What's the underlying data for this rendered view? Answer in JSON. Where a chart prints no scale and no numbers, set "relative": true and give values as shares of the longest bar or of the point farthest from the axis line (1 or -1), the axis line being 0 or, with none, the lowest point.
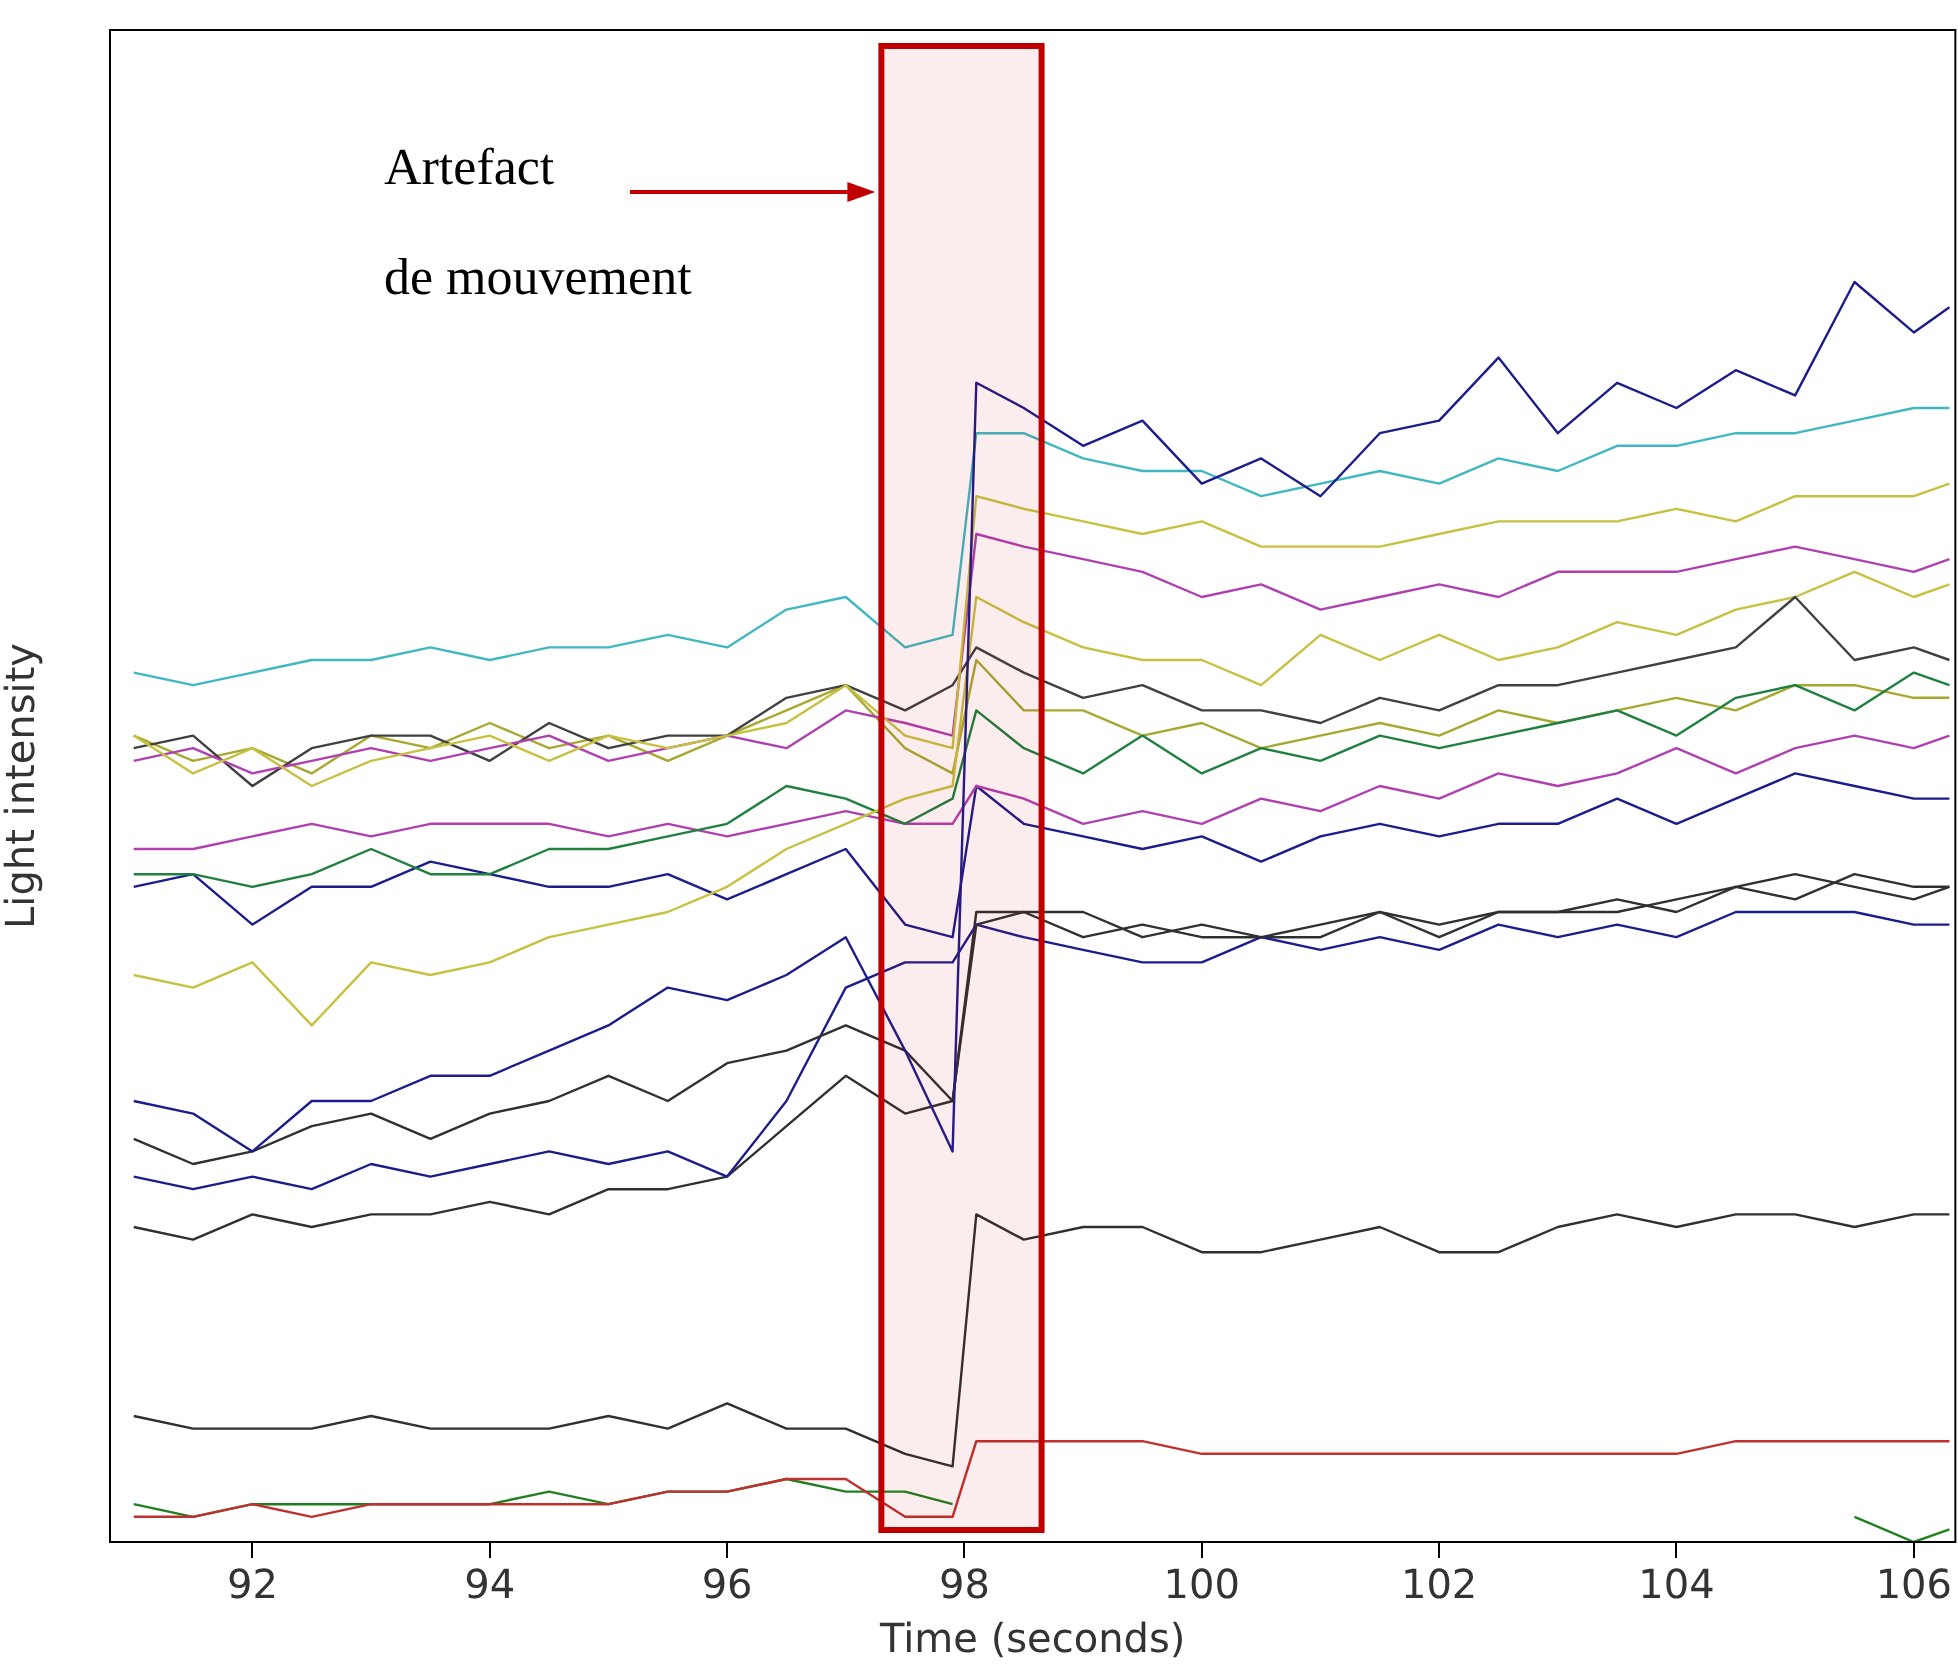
{
  "chart_data": {
    "type": "line",
    "relative": true,
    "xlabel": "Time (seconds)",
    "ylabel": "Light intensity",
    "xlim": [
      90.8,
      106.35
    ],
    "xticks": [
      92,
      94,
      96,
      98,
      100,
      102,
      104,
      106
    ],
    "grid": false,
    "legend": false,
    "marker": "none",
    "line_style": "solid",
    "x": [
      91,
      91.5,
      92,
      92.5,
      93,
      93.5,
      94,
      94.5,
      95,
      95.5,
      96,
      96.5,
      97,
      97.5,
      97.9,
      98.1,
      98.5,
      99,
      99.5,
      100,
      100.5,
      101,
      101.5,
      102,
      102.5,
      103,
      103.5,
      104,
      104.5,
      105,
      105.5,
      106,
      106.3
    ],
    "bands": [
      {
        "axis": "x",
        "from": 97.3,
        "to": 98.65,
        "color": "#c00000"
      }
    ],
    "annotations": [
      "Artefact de mouvement"
    ],
    "series": [
      {
        "color": "#1c1c8c",
        "values": [
          0.35,
          0.34,
          0.31,
          0.35,
          0.35,
          0.37,
          0.37,
          0.39,
          0.41,
          0.44,
          0.43,
          0.45,
          0.48,
          0.39,
          0.31,
          0.92,
          0.9,
          0.87,
          0.89,
          0.84,
          0.86,
          0.83,
          0.88,
          0.89,
          0.94,
          0.88,
          0.92,
          0.9,
          0.93,
          0.91,
          1.0,
          0.96,
          0.98
        ]
      },
      {
        "color": "#40b8c0",
        "values": [
          0.69,
          0.68,
          0.69,
          0.7,
          0.7,
          0.71,
          0.7,
          0.71,
          0.71,
          0.72,
          0.71,
          0.74,
          0.75,
          0.71,
          0.72,
          0.88,
          0.88,
          0.86,
          0.85,
          0.85,
          0.83,
          0.84,
          0.85,
          0.84,
          0.86,
          0.85,
          0.87,
          0.87,
          0.88,
          0.88,
          0.89,
          0.9,
          0.9
        ]
      },
      {
        "color": "#c8c040",
        "values": [
          0.64,
          0.61,
          0.63,
          0.6,
          0.62,
          0.63,
          0.64,
          0.62,
          0.64,
          0.63,
          0.64,
          0.65,
          0.68,
          0.64,
          0.63,
          0.83,
          0.82,
          0.81,
          0.8,
          0.81,
          0.79,
          0.79,
          0.79,
          0.8,
          0.81,
          0.81,
          0.81,
          0.82,
          0.81,
          0.83,
          0.83,
          0.83,
          0.84
        ]
      },
      {
        "color": "#b040b0",
        "values": [
          0.62,
          0.63,
          0.61,
          0.62,
          0.63,
          0.62,
          0.63,
          0.64,
          0.62,
          0.63,
          0.64,
          0.63,
          0.66,
          0.65,
          0.64,
          0.8,
          0.79,
          0.78,
          0.77,
          0.75,
          0.76,
          0.74,
          0.75,
          0.76,
          0.75,
          0.77,
          0.77,
          0.77,
          0.78,
          0.79,
          0.78,
          0.77,
          0.78
        ]
      },
      {
        "color": "#404040",
        "values": [
          0.63,
          0.64,
          0.6,
          0.63,
          0.64,
          0.64,
          0.62,
          0.65,
          0.63,
          0.64,
          0.64,
          0.67,
          0.68,
          0.66,
          0.68,
          0.71,
          0.69,
          0.67,
          0.68,
          0.66,
          0.66,
          0.65,
          0.67,
          0.66,
          0.68,
          0.68,
          0.69,
          0.7,
          0.71,
          0.75,
          0.7,
          0.71,
          0.7
        ]
      },
      {
        "color": "#c8c040",
        "values": [
          0.45,
          0.44,
          0.46,
          0.41,
          0.46,
          0.45,
          0.46,
          0.48,
          0.49,
          0.5,
          0.52,
          0.55,
          0.57,
          0.59,
          0.6,
          0.75,
          0.73,
          0.71,
          0.7,
          0.7,
          0.68,
          0.72,
          0.7,
          0.72,
          0.7,
          0.71,
          0.73,
          0.72,
          0.74,
          0.75,
          0.77,
          0.75,
          0.76
        ]
      },
      {
        "color": "#208040",
        "values": [
          0.53,
          0.53,
          0.52,
          0.53,
          0.55,
          0.53,
          0.53,
          0.55,
          0.55,
          0.56,
          0.57,
          0.6,
          0.59,
          0.57,
          0.59,
          0.66,
          0.63,
          0.61,
          0.64,
          0.61,
          0.63,
          0.62,
          0.64,
          0.63,
          0.64,
          0.65,
          0.66,
          0.64,
          0.67,
          0.68,
          0.66,
          0.69,
          0.68
        ]
      },
      {
        "color": "#b040b0",
        "values": [
          0.55,
          0.55,
          0.56,
          0.57,
          0.56,
          0.57,
          0.57,
          0.57,
          0.56,
          0.57,
          0.56,
          0.57,
          0.58,
          0.57,
          0.57,
          0.6,
          0.59,
          0.57,
          0.58,
          0.57,
          0.59,
          0.58,
          0.6,
          0.59,
          0.61,
          0.6,
          0.61,
          0.63,
          0.61,
          0.63,
          0.64,
          0.63,
          0.64
        ]
      },
      {
        "color": "#1c1c8c",
        "values": [
          0.52,
          0.53,
          0.49,
          0.52,
          0.52,
          0.54,
          0.53,
          0.52,
          0.52,
          0.53,
          0.51,
          0.53,
          0.55,
          0.49,
          0.48,
          0.6,
          0.57,
          0.56,
          0.55,
          0.56,
          0.54,
          0.56,
          0.57,
          0.56,
          0.57,
          0.57,
          0.59,
          0.57,
          0.59,
          0.61,
          0.6,
          0.59,
          0.59
        ]
      },
      {
        "color": "#a8a830",
        "values": [
          0.64,
          0.62,
          0.63,
          0.61,
          0.64,
          0.63,
          0.65,
          0.63,
          0.64,
          0.62,
          0.64,
          0.66,
          0.68,
          0.63,
          0.61,
          0.7,
          0.66,
          0.66,
          0.64,
          0.65,
          0.63,
          0.64,
          0.65,
          0.64,
          0.66,
          0.65,
          0.66,
          0.67,
          0.66,
          0.68,
          0.68,
          0.67,
          0.67
        ]
      },
      {
        "color": "#303030",
        "values": [
          0.32,
          0.3,
          0.31,
          0.33,
          0.34,
          0.32,
          0.34,
          0.35,
          0.37,
          0.35,
          0.38,
          0.39,
          0.41,
          0.39,
          0.35,
          0.49,
          0.5,
          0.48,
          0.49,
          0.48,
          0.48,
          0.49,
          0.5,
          0.49,
          0.5,
          0.5,
          0.5,
          0.51,
          0.52,
          0.53,
          0.52,
          0.51,
          0.52
        ]
      },
      {
        "color": "#1c1c8c",
        "values": [
          0.29,
          0.28,
          0.29,
          0.28,
          0.3,
          0.29,
          0.3,
          0.31,
          0.3,
          0.31,
          0.29,
          0.35,
          0.44,
          0.46,
          0.46,
          0.49,
          0.48,
          0.47,
          0.46,
          0.46,
          0.48,
          0.47,
          0.48,
          0.47,
          0.49,
          0.48,
          0.49,
          0.48,
          0.5,
          0.5,
          0.5,
          0.49,
          0.49
        ]
      },
      {
        "color": "#303030",
        "values": [
          0.25,
          0.24,
          0.26,
          0.25,
          0.26,
          0.26,
          0.27,
          0.26,
          0.28,
          0.28,
          0.29,
          0.33,
          0.37,
          0.34,
          0.35,
          0.5,
          0.5,
          0.5,
          0.48,
          0.49,
          0.48,
          0.48,
          0.5,
          0.48,
          0.5,
          0.5,
          0.51,
          0.5,
          0.52,
          0.51,
          0.53,
          0.52,
          0.52
        ]
      },
      {
        "color": "#303030",
        "values": [
          0.1,
          0.09,
          0.09,
          0.09,
          0.1,
          0.09,
          0.09,
          0.09,
          0.1,
          0.09,
          0.11,
          0.09,
          0.09,
          0.07,
          0.06,
          0.26,
          0.24,
          0.25,
          0.25,
          0.23,
          0.23,
          0.24,
          0.25,
          0.23,
          0.23,
          0.25,
          0.26,
          0.25,
          0.26,
          0.26,
          0.25,
          0.26,
          0.26
        ]
      },
      {
        "color": "#c03030",
        "values": [
          0.02,
          0.02,
          0.03,
          0.02,
          0.03,
          0.03,
          0.03,
          0.03,
          0.03,
          0.04,
          0.04,
          0.05,
          0.05,
          0.02,
          0.02,
          0.08,
          0.08,
          0.08,
          0.08,
          0.07,
          0.07,
          0.07,
          0.07,
          0.07,
          0.07,
          0.07,
          0.07,
          0.07,
          0.08,
          0.08,
          0.08,
          0.08,
          0.08
        ]
      },
      {
        "color": "#208020",
        "values": [
          0.03,
          0.02,
          0.03,
          0.03,
          0.03,
          0.03,
          0.03,
          0.04,
          0.03,
          0.04,
          0.04,
          0.05,
          0.04,
          0.04,
          0.03,
          null,
          null,
          null,
          null,
          null,
          null,
          null,
          null,
          null,
          null,
          null,
          null,
          null,
          null,
          null,
          0.02,
          0,
          0.01
        ]
      }
    ]
  }
}
